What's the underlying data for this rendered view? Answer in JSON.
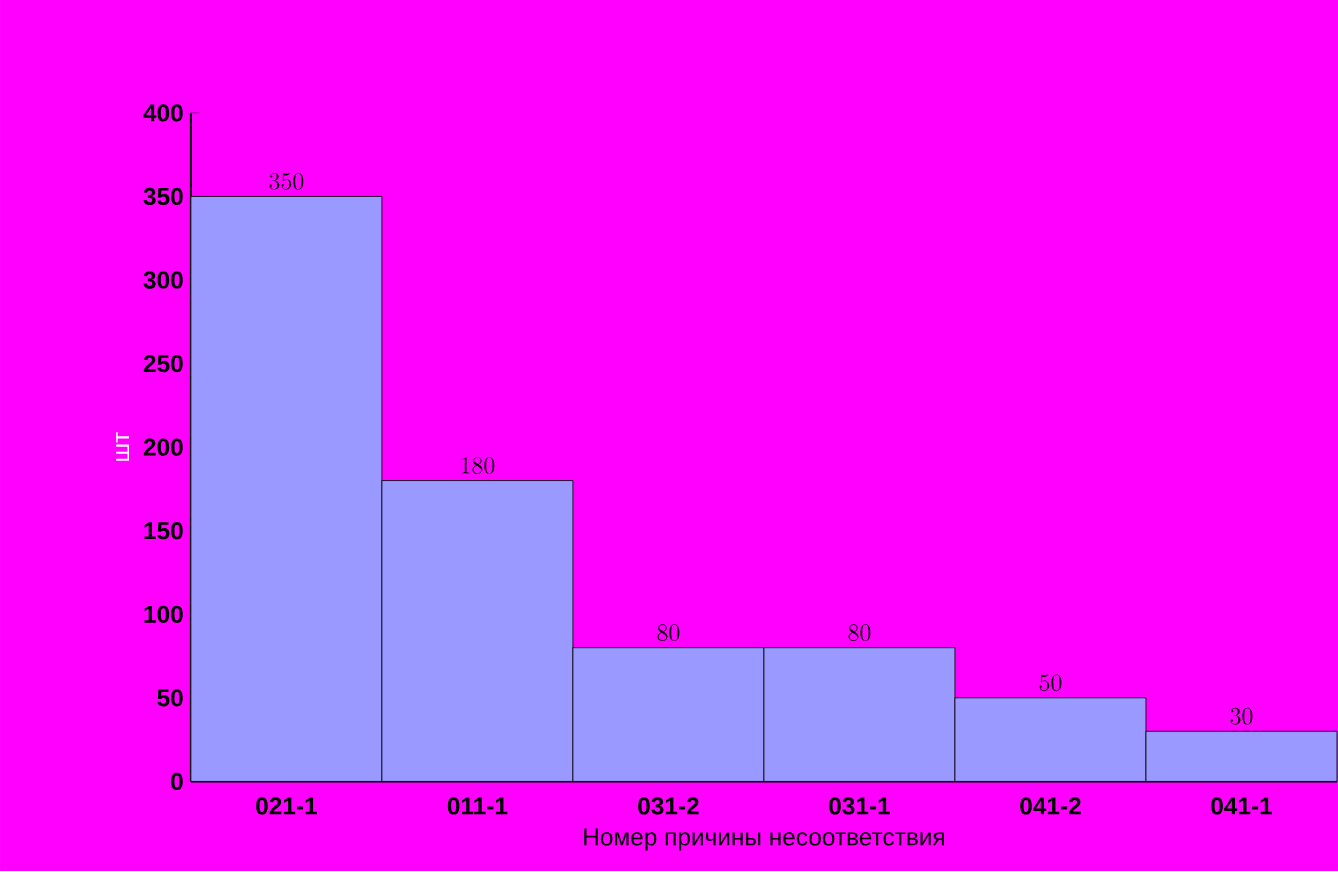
{
  "chart_data": {
    "type": "bar",
    "xlabel": "Номер причины несоответствия",
    "ylabel": "шт",
    "categories": [
      "021-1",
      "011-1",
      "031-2",
      "031-1",
      "041-2",
      "041-1"
    ],
    "values": [
      350,
      180,
      80,
      80,
      50,
      30
    ],
    "color": "#9999ff",
    "ylim": [
      0,
      400
    ],
    "yticks": [
      0,
      50,
      100,
      150,
      200,
      250,
      300,
      350,
      400
    ],
    "grid": false,
    "data_labels": true
  }
}
